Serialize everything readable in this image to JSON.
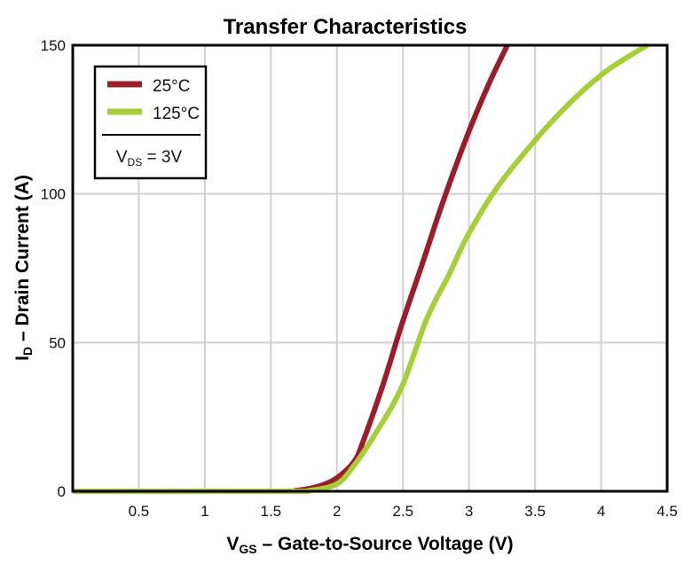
{
  "chart_data": {
    "type": "line",
    "title": "Transfer Characteristics",
    "xlabel": {
      "main": "V",
      "sub": "GS",
      "rest": " – Gate-to-Source Voltage (V)"
    },
    "ylabel": {
      "main": "I",
      "sub": "D",
      "rest": " – Drain Current (A)"
    },
    "xlim": [
      0,
      4.5
    ],
    "ylim": [
      0,
      150
    ],
    "xticks": [
      0.5,
      1,
      1.5,
      2,
      2.5,
      3,
      3.5,
      4,
      4.5
    ],
    "xtick_labels": [
      "0.5",
      "1",
      "1.5",
      "2",
      "2.5",
      "3",
      "3.5",
      "4",
      "4.5"
    ],
    "yticks": [
      0,
      50,
      100,
      150
    ],
    "ytick_labels": [
      "0",
      "50",
      "100",
      "150"
    ],
    "grid": true,
    "legend": {
      "placement": "top-left",
      "note": {
        "main": "V",
        "sub": "DS",
        "rest": " = 3V"
      }
    },
    "series": [
      {
        "name": "25°C",
        "color": "#9b1c2a",
        "x": [
          0,
          1.5,
          1.7,
          1.87,
          2.0,
          2.13,
          2.2,
          2.35,
          2.49,
          2.65,
          2.8,
          2.99,
          3.15,
          3.29
        ],
        "y": [
          0,
          0,
          0.3,
          1.8,
          4.5,
          10,
          17,
          36,
          56,
          77,
          97,
          120,
          137,
          150
        ]
      },
      {
        "name": "125°C",
        "color": "#a6ce39",
        "x": [
          0,
          1.6,
          1.8,
          2.0,
          2.13,
          2.3,
          2.49,
          2.68,
          2.85,
          2.99,
          3.21,
          3.5,
          3.75,
          4.0,
          4.2,
          4.35
        ],
        "y": [
          0,
          0,
          0.3,
          2.5,
          8.7,
          20,
          35,
          58,
          73,
          86,
          102,
          118,
          130,
          140,
          146,
          150
        ]
      }
    ]
  }
}
